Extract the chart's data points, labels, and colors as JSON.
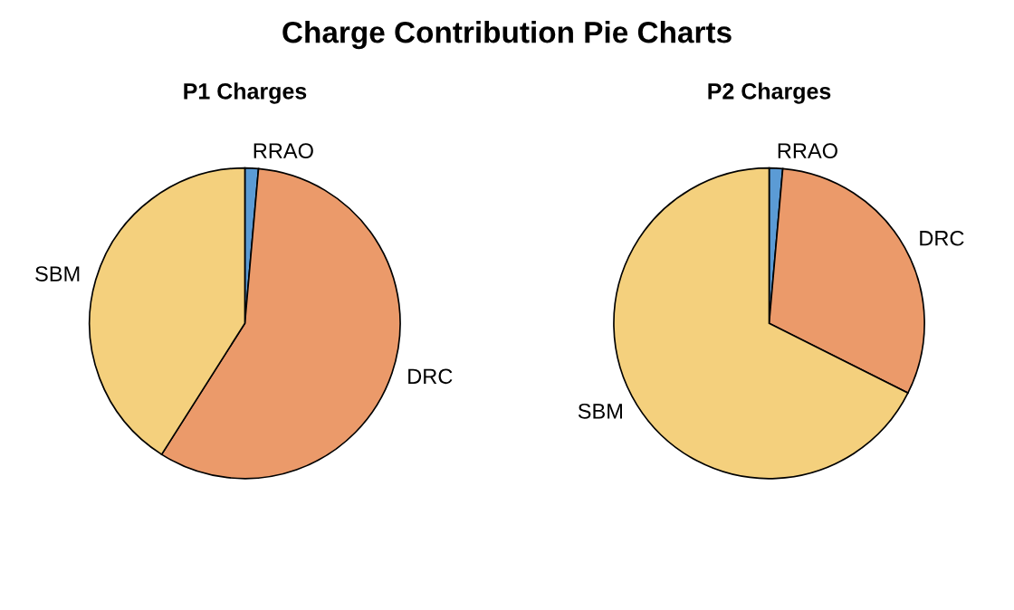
{
  "chart_data": [
    {
      "type": "pie",
      "title": "P1 Charges",
      "annotations": [
        "Charge Contribution Pie Charts"
      ],
      "categories": [
        "RRAO",
        "DRC",
        "SBM"
      ],
      "values": [
        1.4,
        57.6,
        41.0
      ],
      "colors": [
        "#5b9bd5",
        "#eb9a6a",
        "#f4d07d"
      ]
    },
    {
      "type": "pie",
      "title": "P2 Charges",
      "categories": [
        "RRAO",
        "DRC",
        "SBM"
      ],
      "values": [
        1.4,
        31.0,
        67.6
      ],
      "colors": [
        "#5b9bd5",
        "#eb9a6a",
        "#f4d07d"
      ]
    }
  ]
}
